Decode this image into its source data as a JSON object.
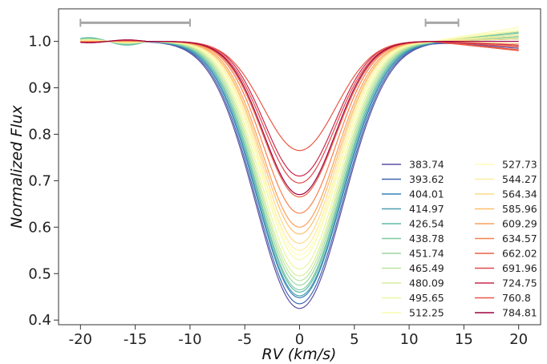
{
  "chart_data": {
    "type": "line",
    "title": "",
    "xlabel": "RV (km/s)",
    "ylabel": "Normalized Flux",
    "xlim": [
      -22,
      22
    ],
    "ylim": [
      0.39,
      1.07
    ],
    "xticks": [
      "-20",
      "-15",
      "-10",
      "-5",
      "0",
      "5",
      "10",
      "15",
      "20"
    ],
    "xtick_values": [
      -20,
      -15,
      -10,
      -5,
      0,
      5,
      10,
      15,
      20
    ],
    "yticks": [
      "0.4",
      "0.5",
      "0.6",
      "0.7",
      "0.8",
      "0.9",
      "1.0"
    ],
    "ytick_values": [
      0.4,
      0.5,
      0.6,
      0.7,
      0.8,
      0.9,
      1.0
    ],
    "grid": false,
    "legend_position": "lower-right",
    "legend_columns": 2,
    "continuum_ranges": [
      {
        "x": [
          -20,
          -10
        ],
        "y": 1.04,
        "color": "#a6a6a6"
      },
      {
        "x": [
          11.5,
          14.5
        ],
        "y": 1.04,
        "color": "#a6a6a6"
      }
    ],
    "series": [
      {
        "name": "383.74",
        "color": "#5e4fa2",
        "depth": 0.575,
        "width": 4.0,
        "edge_left": 0.003,
        "edge_right": -0.015
      },
      {
        "name": "393.62",
        "color": "#3d67ae",
        "depth": 0.565,
        "width": 3.95,
        "edge_left": 0.004,
        "edge_right": -0.01
      },
      {
        "name": "404.01",
        "color": "#3682ba",
        "depth": 0.552,
        "width": 3.9,
        "edge_left": 0.006,
        "edge_right": 0.005
      },
      {
        "name": "414.97",
        "color": "#4ba0b1",
        "depth": 0.548,
        "width": 3.85,
        "edge_left": 0.006,
        "edge_right": 0.012
      },
      {
        "name": "426.54",
        "color": "#5fbaa8",
        "depth": 0.54,
        "width": 3.8,
        "edge_left": 0.008,
        "edge_right": 0.018
      },
      {
        "name": "438.78",
        "color": "#7fcba4",
        "depth": 0.535,
        "width": 3.75,
        "edge_left": 0.006,
        "edge_right": 0.01
      },
      {
        "name": "451.74",
        "color": "#9dd7a4",
        "depth": 0.525,
        "width": 3.7,
        "edge_left": 0.005,
        "edge_right": 0.02
      },
      {
        "name": "465.49",
        "color": "#bbe4a0",
        "depth": 0.515,
        "width": 3.65,
        "edge_left": 0.004,
        "edge_right": 0.008
      },
      {
        "name": "480.09",
        "color": "#d6ee9b",
        "depth": 0.505,
        "width": 3.6,
        "edge_left": 0.004,
        "edge_right": 0.015
      },
      {
        "name": "495.65",
        "color": "#eaf69f",
        "depth": 0.49,
        "width": 3.55,
        "edge_left": 0.003,
        "edge_right": 0.022
      },
      {
        "name": "512.25",
        "color": "#f7fbae",
        "depth": 0.47,
        "width": 3.5,
        "edge_left": 0.002,
        "edge_right": 0.03
      },
      {
        "name": "527.73",
        "color": "#fffcb8",
        "depth": 0.46,
        "width": 3.5,
        "edge_left": 0.002,
        "edge_right": 0.025
      },
      {
        "name": "544.27",
        "color": "#feeea2",
        "depth": 0.45,
        "width": 3.45,
        "edge_left": 0.001,
        "edge_right": 0.012
      },
      {
        "name": "564.34",
        "color": "#fedb87",
        "depth": 0.435,
        "width": 3.4,
        "edge_left": 0.001,
        "edge_right": 0.005
      },
      {
        "name": "585.96",
        "color": "#fdbe6f",
        "depth": 0.415,
        "width": 3.4,
        "edge_left": 0.0,
        "edge_right": -0.005
      },
      {
        "name": "609.29",
        "color": "#fba05b",
        "depth": 0.4,
        "width": 3.35,
        "edge_left": 0.0,
        "edge_right": -0.01
      },
      {
        "name": "634.57",
        "color": "#f6804c",
        "depth": 0.37,
        "width": 3.3,
        "edge_left": -0.001,
        "edge_right": -0.02
      },
      {
        "name": "662.02",
        "color": "#eb6046",
        "depth": 0.335,
        "width": 3.3,
        "edge_left": -0.002,
        "edge_right": -0.018
      },
      {
        "name": "691.96",
        "color": "#e04a4d",
        "depth": 0.305,
        "width": 3.25,
        "edge_left": -0.002,
        "edge_right": -0.012
      },
      {
        "name": "724.75",
        "color": "#c92a4c",
        "depth": 0.29,
        "width": 3.2,
        "edge_left": -0.003,
        "edge_right": -0.008
      },
      {
        "name": "760.8",
        "color": "#ea5745",
        "depth": 0.235,
        "width": 3.3,
        "edge_left": -0.002,
        "edge_right": -0.02
      },
      {
        "name": "784.81",
        "color": "#9e0142",
        "depth": 0.33,
        "width": 3.25,
        "edge_left": -0.003,
        "edge_right": 0.0
      }
    ]
  }
}
